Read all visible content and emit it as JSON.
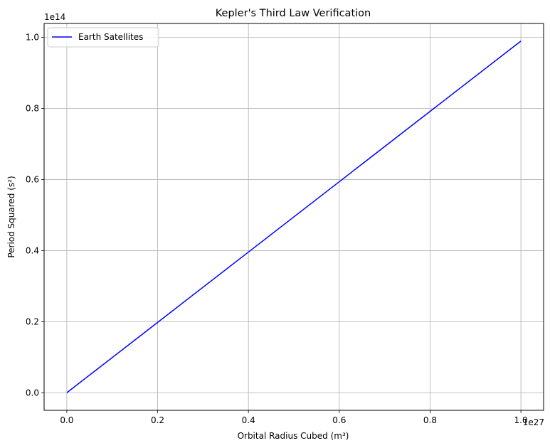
{
  "chart_data": {
    "type": "line",
    "title": "Kepler's Third Law Verification",
    "xlabel": "Orbital Radius Cubed (m³)",
    "ylabel": "Period Squared (s²)",
    "x_offset_label": "1e27",
    "y_offset_label": "1e14",
    "x_scale_factor": 1e+27,
    "y_scale_factor": 100000000000000.0,
    "xlim": [
      -0.05,
      1.05
    ],
    "ylim": [
      -0.0495,
      1.0395
    ],
    "x_ticks": [
      0.0,
      0.2,
      0.4,
      0.6,
      0.8,
      1.0
    ],
    "x_tick_labels": [
      "0.0",
      "0.2",
      "0.4",
      "0.6",
      "0.8",
      "1.0"
    ],
    "y_ticks": [
      0.0,
      0.2,
      0.4,
      0.6,
      0.8,
      1.0
    ],
    "y_tick_labels": [
      "0.0",
      "0.2",
      "0.4",
      "0.6",
      "0.8",
      "1.0"
    ],
    "grid": true,
    "legend_position": "top-left",
    "series": [
      {
        "name": "Earth Satellites",
        "color": "#0000ff",
        "x": [
          0.0,
          0.2,
          0.4,
          0.6,
          0.8,
          1.0
        ],
        "y": [
          0.0,
          0.198,
          0.396,
          0.594,
          0.792,
          0.99
        ]
      }
    ]
  }
}
